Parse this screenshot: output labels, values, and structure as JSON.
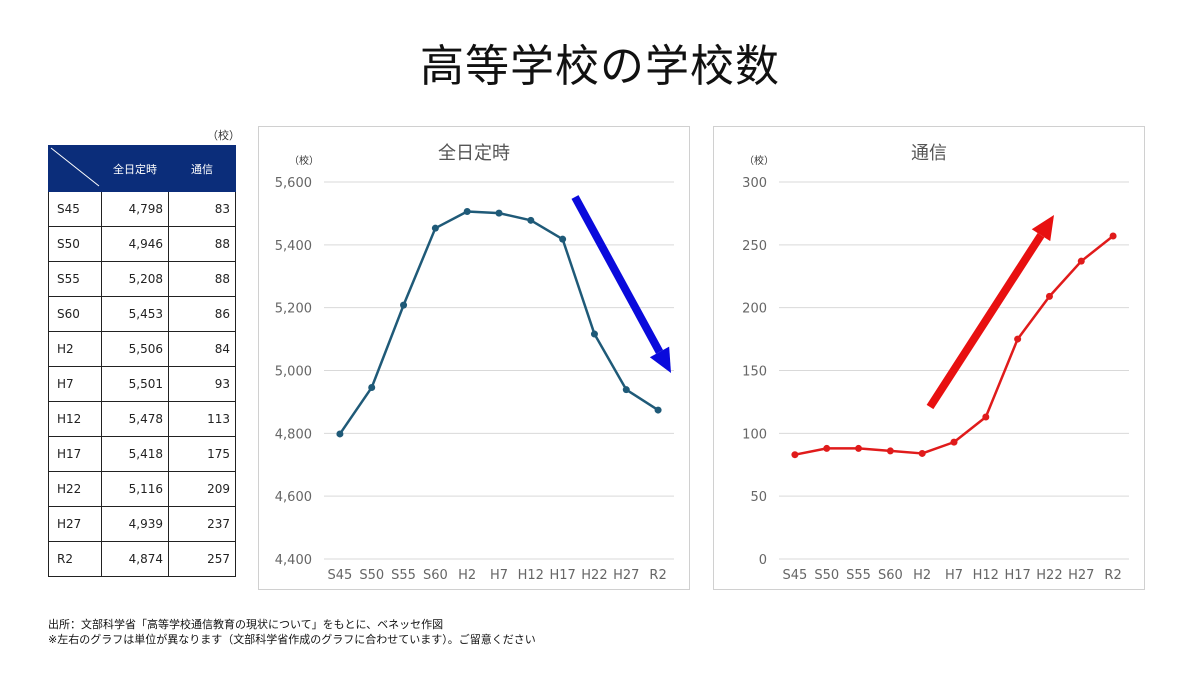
{
  "page": {
    "title": "高等学校の学校数",
    "footnote1": "出所：文部科学省「高等学校通信教育の現状について」をもとに、ベネッセ作図",
    "footnote2": "※左右のグラフは単位が異なります（文部科学省作成のグラフに合わせています）。ご留意ください"
  },
  "table": {
    "unit": "（校）",
    "headers": [
      "全日定時",
      "通信"
    ],
    "rows": [
      {
        "label": "S45",
        "zen": "4,798",
        "tsushin": "83"
      },
      {
        "label": "S50",
        "zen": "4,946",
        "tsushin": "88"
      },
      {
        "label": "S55",
        "zen": "5,208",
        "tsushin": "88"
      },
      {
        "label": "S60",
        "zen": "5,453",
        "tsushin": "86"
      },
      {
        "label": "H2",
        "zen": "5,506",
        "tsushin": "84"
      },
      {
        "label": "H7",
        "zen": "5,501",
        "tsushin": "93"
      },
      {
        "label": "H12",
        "zen": "5,478",
        "tsushin": "113"
      },
      {
        "label": "H17",
        "zen": "5,418",
        "tsushin": "175"
      },
      {
        "label": "H22",
        "zen": "5,116",
        "tsushin": "209"
      },
      {
        "label": "H27",
        "zen": "4,939",
        "tsushin": "237"
      },
      {
        "label": "R2",
        "zen": "4,874",
        "tsushin": "257"
      }
    ]
  },
  "chart_data": [
    {
      "type": "line",
      "title": "全日定時",
      "unit": "（校）",
      "categories": [
        "S45",
        "S50",
        "S55",
        "S60",
        "H2",
        "H7",
        "H12",
        "H17",
        "H22",
        "H27",
        "R2"
      ],
      "values": [
        4798,
        4946,
        5208,
        5453,
        5506,
        5501,
        5478,
        5418,
        5116,
        4939,
        4874
      ],
      "ylim": [
        4400,
        5600
      ],
      "yticks": [
        4400,
        4600,
        4800,
        5000,
        5200,
        5400,
        5600
      ],
      "ytick_labels": [
        "4,400",
        "4,600",
        "4,800",
        "5,000",
        "5,200",
        "5,400",
        "5,600"
      ],
      "grid": true,
      "line_color": "#1f5a78",
      "trend_arrow": {
        "direction": "down",
        "color": "#0a0adc"
      }
    },
    {
      "type": "line",
      "title": "通信",
      "unit": "（校）",
      "categories": [
        "S45",
        "S50",
        "S55",
        "S60",
        "H2",
        "H7",
        "H12",
        "H17",
        "H22",
        "H27",
        "R2"
      ],
      "values": [
        83,
        88,
        88,
        86,
        84,
        93,
        113,
        175,
        209,
        237,
        257
      ],
      "ylim": [
        0,
        300
      ],
      "yticks": [
        0,
        50,
        100,
        150,
        200,
        250,
        300
      ],
      "ytick_labels": [
        "0",
        "50",
        "100",
        "150",
        "200",
        "250",
        "300"
      ],
      "grid": true,
      "line_color": "#e01b1b",
      "trend_arrow": {
        "direction": "up",
        "color": "#e81010"
      }
    }
  ]
}
